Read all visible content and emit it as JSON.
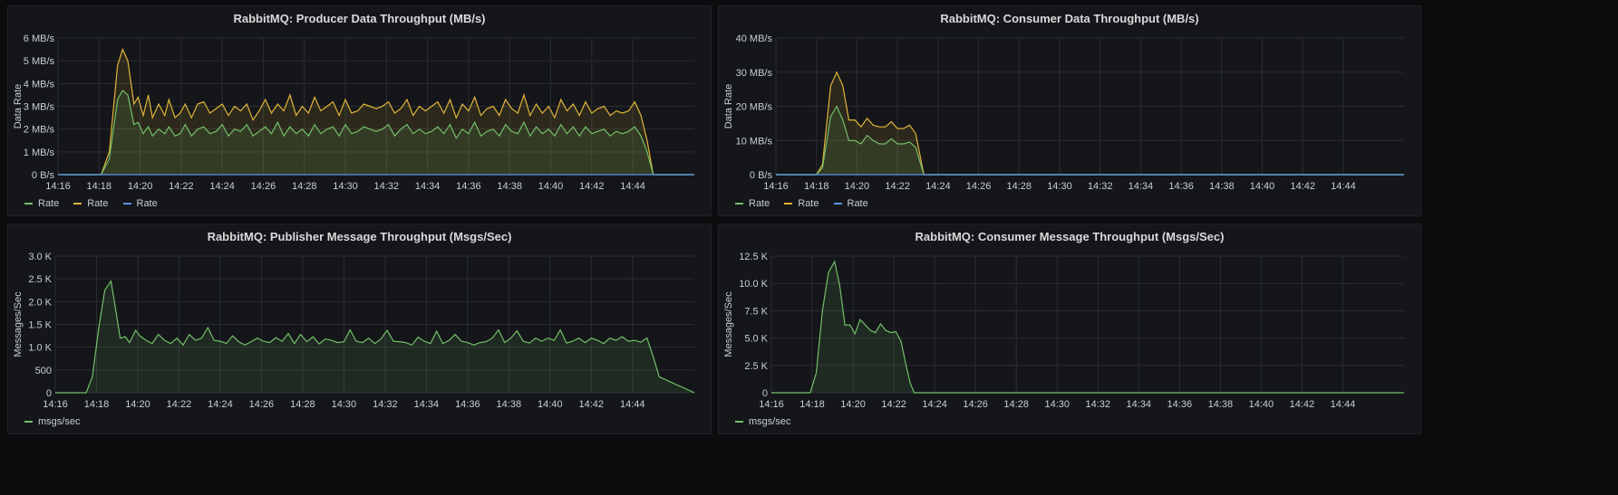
{
  "colors": {
    "green": "#73bf69",
    "yellow": "#e0b33a",
    "blue": "#5794f2",
    "grid": "#2a2d31",
    "axis_text": "#c7d0d9",
    "panel_bg": "#141619"
  },
  "panels": [
    {
      "title": "RabbitMQ: Producer Data Throughput (MB/s)",
      "legend": [
        {
          "label": "Rate",
          "color": "#73bf69"
        },
        {
          "label": "Rate",
          "color": "#e0b33a"
        },
        {
          "label": "Rate",
          "color": "#5794f2"
        }
      ]
    },
    {
      "title": "RabbitMQ: Consumer Data Throughput (MB/s)",
      "legend": [
        {
          "label": "Rate",
          "color": "#73bf69"
        },
        {
          "label": "Rate",
          "color": "#e0b33a"
        },
        {
          "label": "Rate",
          "color": "#5794f2"
        }
      ]
    },
    {
      "title": "RabbitMQ: Publisher Message Throughput (Msgs/Sec)",
      "legend": [
        {
          "label": "msgs/sec",
          "color": "#73bf69"
        }
      ]
    },
    {
      "title": "RabbitMQ: Consumer Message Throughput (Msgs/Sec)",
      "legend": [
        {
          "label": "msgs/sec",
          "color": "#73bf69"
        }
      ]
    }
  ],
  "chart_data": [
    {
      "type": "area",
      "title": "RabbitMQ: Producer Data Throughput (MB/s)",
      "ylabel": "Data Rate",
      "xlabel": "",
      "x_unit": "minutes after 14:16",
      "xlim": [
        0,
        31
      ],
      "ylim": [
        0,
        6
      ],
      "x_ticks": [
        "14:16",
        "14:18",
        "14:20",
        "14:22",
        "14:24",
        "14:26",
        "14:28",
        "14:30",
        "14:32",
        "14:34",
        "14:36",
        "14:38",
        "14:40",
        "14:42",
        "14:44"
      ],
      "y_ticks": [
        "0 B/s",
        "1 MB/s",
        "2 MB/s",
        "3 MB/s",
        "4 MB/s",
        "5 MB/s",
        "6 MB/s"
      ],
      "grid": true,
      "legend_position": "bottom-left",
      "series": [
        {
          "color": "#e0b33a",
          "x": [
            0,
            2.1,
            2.5,
            2.9,
            3.15,
            3.4,
            3.7,
            3.9,
            4.15,
            4.4,
            4.6,
            4.9,
            5.2,
            5.4,
            5.7,
            5.95,
            6.2,
            6.5,
            6.8,
            7.1,
            7.4,
            7.7,
            8,
            8.3,
            8.6,
            8.9,
            9.2,
            9.5,
            9.8,
            10.1,
            10.4,
            10.7,
            11,
            11.3,
            11.6,
            11.9,
            12.2,
            12.5,
            12.8,
            13.1,
            13.4,
            13.7,
            14,
            14.3,
            14.6,
            14.9,
            15.2,
            15.5,
            15.8,
            16.1,
            16.4,
            16.7,
            17,
            17.3,
            17.6,
            17.9,
            18.2,
            18.5,
            18.8,
            19.1,
            19.4,
            19.7,
            20,
            20.3,
            20.6,
            20.9,
            21.2,
            21.5,
            21.8,
            22.1,
            22.4,
            22.7,
            23,
            23.3,
            23.6,
            23.9,
            24.2,
            24.5,
            24.8,
            25.1,
            25.4,
            25.7,
            26,
            26.3,
            26.6,
            26.9,
            27.2,
            27.5,
            27.8,
            28.1,
            28.4,
            28.7,
            29,
            29.3,
            31
          ],
          "y": [
            0,
            0,
            1.0,
            4.8,
            5.5,
            5.0,
            3.1,
            3.4,
            2.6,
            3.5,
            2.5,
            3.1,
            2.6,
            3.3,
            2.5,
            2.7,
            3.1,
            2.5,
            3.1,
            3.2,
            2.7,
            2.9,
            3.1,
            2.6,
            3.0,
            2.8,
            3.1,
            2.4,
            2.8,
            3.3,
            2.7,
            3.1,
            2.8,
            3.5,
            2.6,
            3.0,
            2.7,
            3.4,
            2.8,
            3.0,
            3.2,
            2.6,
            3.3,
            2.7,
            2.8,
            3.1,
            3.0,
            2.9,
            3.0,
            3.2,
            2.7,
            2.9,
            3.3,
            2.6,
            3.0,
            2.8,
            3.0,
            3.2,
            2.7,
            3.3,
            2.5,
            3.1,
            2.8,
            3.4,
            2.6,
            2.9,
            3.0,
            2.6,
            3.3,
            2.9,
            2.7,
            3.5,
            2.6,
            3.1,
            2.7,
            3.0,
            2.5,
            3.3,
            2.8,
            3.1,
            2.6,
            3.2,
            2.7,
            2.9,
            3.0,
            2.6,
            2.8,
            2.7,
            2.8,
            3.2,
            2.6,
            1.5,
            0,
            0,
            0
          ]
        },
        {
          "color": "#73bf69",
          "x": [
            0,
            2.1,
            2.5,
            2.9,
            3.15,
            3.4,
            3.7,
            3.9,
            4.15,
            4.4,
            4.6,
            4.9,
            5.2,
            5.4,
            5.7,
            5.95,
            6.2,
            6.5,
            6.8,
            7.1,
            7.4,
            7.7,
            8,
            8.3,
            8.6,
            8.9,
            9.2,
            9.5,
            9.8,
            10.1,
            10.4,
            10.7,
            11,
            11.3,
            11.6,
            11.9,
            12.2,
            12.5,
            12.8,
            13.1,
            13.4,
            13.7,
            14,
            14.3,
            14.6,
            14.9,
            15.2,
            15.5,
            15.8,
            16.1,
            16.4,
            16.7,
            17,
            17.3,
            17.6,
            17.9,
            18.2,
            18.5,
            18.8,
            19.1,
            19.4,
            19.7,
            20,
            20.3,
            20.6,
            20.9,
            21.2,
            21.5,
            21.8,
            22.1,
            22.4,
            22.7,
            23,
            23.3,
            23.6,
            23.9,
            24.2,
            24.5,
            24.8,
            25.1,
            25.4,
            25.7,
            26,
            26.3,
            26.6,
            26.9,
            27.2,
            27.5,
            27.8,
            28.1,
            28.4,
            28.7,
            29,
            29.3,
            31
          ],
          "y": [
            0,
            0,
            0.7,
            3.3,
            3.7,
            3.5,
            2.2,
            2.3,
            1.8,
            2.1,
            1.7,
            2.0,
            1.8,
            2.1,
            1.7,
            1.8,
            2.2,
            1.7,
            2.0,
            2.1,
            1.8,
            1.9,
            2.2,
            1.7,
            2.0,
            1.9,
            2.2,
            1.7,
            1.9,
            2.1,
            1.8,
            2.3,
            1.7,
            2.1,
            1.8,
            2.0,
            1.7,
            2.2,
            1.8,
            2.0,
            2.1,
            1.7,
            2.2,
            1.8,
            1.9,
            2.1,
            2.0,
            1.9,
            2.0,
            2.2,
            1.7,
            2.0,
            2.2,
            1.8,
            2.0,
            1.8,
            1.9,
            2.1,
            1.8,
            2.2,
            1.6,
            2.0,
            1.8,
            2.3,
            1.7,
            1.9,
            2.0,
            1.7,
            2.2,
            1.9,
            1.8,
            2.3,
            1.7,
            2.1,
            1.8,
            2.0,
            1.7,
            2.2,
            1.8,
            2.1,
            1.7,
            2.1,
            1.8,
            1.9,
            2.0,
            1.7,
            1.9,
            1.8,
            1.9,
            2.1,
            1.7,
            1.0,
            0,
            0,
            0
          ]
        },
        {
          "color": "#5794f2",
          "x": [
            0,
            31
          ],
          "y": [
            0,
            0
          ]
        }
      ]
    },
    {
      "type": "area",
      "title": "RabbitMQ: Consumer Data Throughput (MB/s)",
      "ylabel": "Data Rate",
      "xlabel": "",
      "x_unit": "minutes after 14:16",
      "xlim": [
        0,
        31
      ],
      "ylim": [
        0,
        40
      ],
      "x_ticks": [
        "14:16",
        "14:18",
        "14:20",
        "14:22",
        "14:24",
        "14:26",
        "14:28",
        "14:30",
        "14:32",
        "14:34",
        "14:36",
        "14:38",
        "14:40",
        "14:42",
        "14:44"
      ],
      "y_ticks": [
        "0 B/s",
        "10 MB/s",
        "20 MB/s",
        "30 MB/s",
        "40 MB/s"
      ],
      "grid": true,
      "legend_position": "bottom-left",
      "series": [
        {
          "color": "#e0b33a",
          "x": [
            0,
            2.0,
            2.3,
            2.7,
            3.0,
            3.3,
            3.6,
            3.9,
            4.2,
            4.5,
            4.8,
            5.1,
            5.4,
            5.7,
            6.0,
            6.3,
            6.6,
            6.9,
            7.1,
            7.3,
            31
          ],
          "y": [
            0,
            0,
            3,
            26,
            30,
            26,
            16,
            16,
            14,
            16.5,
            14.5,
            14,
            14,
            15.5,
            13.5,
            13.5,
            14.5,
            12,
            6,
            0,
            0
          ]
        },
        {
          "color": "#73bf69",
          "x": [
            0,
            2.0,
            2.3,
            2.7,
            3.0,
            3.3,
            3.6,
            3.9,
            4.2,
            4.5,
            4.8,
            5.1,
            5.4,
            5.7,
            6.0,
            6.3,
            6.6,
            6.9,
            7.1,
            7.3,
            31
          ],
          "y": [
            0,
            0,
            2,
            17,
            20,
            16,
            10,
            10,
            9,
            11.5,
            10,
            9,
            9,
            10.5,
            9,
            9,
            9.5,
            8,
            4,
            0,
            0
          ]
        },
        {
          "color": "#5794f2",
          "x": [
            0,
            31
          ],
          "y": [
            0,
            0
          ]
        }
      ]
    },
    {
      "type": "area",
      "title": "RabbitMQ: Publisher Message Throughput (Msgs/Sec)",
      "ylabel": "Messages/Sec",
      "xlabel": "",
      "x_unit": "minutes after 14:16",
      "xlim": [
        0,
        31
      ],
      "ylim": [
        0,
        3000
      ],
      "x_ticks": [
        "14:16",
        "14:18",
        "14:20",
        "14:22",
        "14:24",
        "14:26",
        "14:28",
        "14:30",
        "14:32",
        "14:34",
        "14:36",
        "14:38",
        "14:40",
        "14:42",
        "14:44"
      ],
      "y_ticks": [
        "0",
        "500",
        "1.0 K",
        "1.5 K",
        "2.0 K",
        "2.5 K",
        "3.0 K"
      ],
      "grid": true,
      "legend_position": "bottom-left",
      "series": [
        {
          "color": "#73bf69",
          "x": [
            0,
            1.5,
            1.8,
            2.1,
            2.4,
            2.7,
            2.9,
            3.15,
            3.4,
            3.6,
            3.9,
            4.1,
            4.4,
            4.7,
            5.0,
            5.3,
            5.6,
            5.9,
            6.2,
            6.5,
            6.8,
            7.1,
            7.4,
            7.7,
            8.0,
            8.3,
            8.6,
            8.9,
            9.2,
            9.5,
            9.8,
            10.1,
            10.4,
            10.7,
            11.0,
            11.3,
            11.6,
            11.9,
            12.2,
            12.5,
            12.8,
            13.1,
            13.4,
            13.7,
            14.0,
            14.3,
            14.6,
            14.9,
            15.2,
            15.5,
            15.8,
            16.1,
            16.4,
            16.7,
            17.0,
            17.3,
            17.6,
            17.9,
            18.2,
            18.5,
            18.8,
            19.1,
            19.4,
            19.7,
            20.0,
            20.3,
            20.6,
            20.9,
            21.2,
            21.5,
            21.8,
            22.1,
            22.4,
            22.7,
            23.0,
            23.3,
            23.6,
            23.9,
            24.2,
            24.5,
            24.8,
            25.1,
            25.4,
            25.7,
            26.0,
            26.3,
            26.6,
            26.9,
            27.2,
            27.5,
            27.8,
            28.1,
            28.4,
            28.7,
            29.0,
            29.3,
            31
          ],
          "y": [
            0,
            0,
            350,
            1400,
            2250,
            2450,
            1900,
            1200,
            1230,
            1100,
            1370,
            1250,
            1150,
            1080,
            1280,
            1150,
            1080,
            1200,
            1050,
            1280,
            1150,
            1200,
            1430,
            1150,
            1130,
            1080,
            1250,
            1120,
            1050,
            1120,
            1200,
            1130,
            1100,
            1210,
            1130,
            1300,
            1080,
            1280,
            1120,
            1230,
            1070,
            1180,
            1150,
            1100,
            1120,
            1380,
            1130,
            1100,
            1200,
            1080,
            1180,
            1370,
            1130,
            1120,
            1100,
            1050,
            1220,
            1130,
            1080,
            1350,
            1080,
            1150,
            1280,
            1130,
            1100,
            1050,
            1100,
            1120,
            1200,
            1380,
            1100,
            1200,
            1360,
            1130,
            1090,
            1200,
            1130,
            1200,
            1150,
            1380,
            1090,
            1130,
            1200,
            1100,
            1200,
            1150,
            1080,
            1200,
            1150,
            1230,
            1130,
            1150,
            1110,
            1200,
            800,
            350,
            0
          ]
        }
      ]
    },
    {
      "type": "area",
      "title": "RabbitMQ: Consumer Message Throughput (Msgs/Sec)",
      "ylabel": "Messages/Sec",
      "xlabel": "",
      "x_unit": "minutes after 14:16",
      "xlim": [
        0,
        31
      ],
      "ylim": [
        0,
        12500
      ],
      "x_ticks": [
        "14:16",
        "14:18",
        "14:20",
        "14:22",
        "14:24",
        "14:26",
        "14:28",
        "14:30",
        "14:32",
        "14:34",
        "14:36",
        "14:38",
        "14:40",
        "14:42",
        "14:44"
      ],
      "y_ticks": [
        "0",
        "2.5 K",
        "5.0 K",
        "7.5 K",
        "10.0 K",
        "12.5 K"
      ],
      "grid": true,
      "legend_position": "bottom-left",
      "series": [
        {
          "color": "#73bf69",
          "x": [
            0,
            1.9,
            2.2,
            2.5,
            2.8,
            3.1,
            3.35,
            3.6,
            3.85,
            4.1,
            4.35,
            4.6,
            4.85,
            5.1,
            5.35,
            5.6,
            5.85,
            6.1,
            6.35,
            6.6,
            6.8,
            7.0,
            7.2,
            31
          ],
          "y": [
            0,
            0,
            1800,
            7500,
            11000,
            12000,
            9800,
            6200,
            6200,
            5400,
            6700,
            6200,
            5700,
            5500,
            6300,
            5700,
            5500,
            5600,
            4700,
            2500,
            900,
            0,
            0,
            0
          ]
        }
      ]
    }
  ]
}
